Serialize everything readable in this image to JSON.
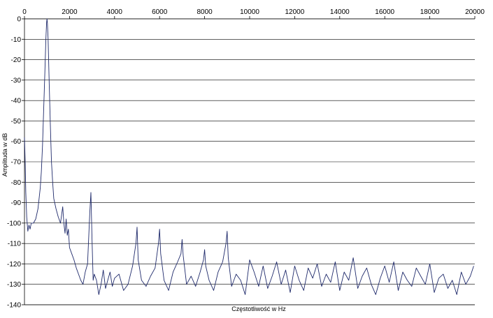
{
  "chart_data": {
    "type": "line",
    "title": "",
    "xlabel": "Częstotliwość w Hz",
    "ylabel": "Amplituda w dB",
    "xlim": [
      0,
      20000
    ],
    "ylim": [
      -140,
      0
    ],
    "x_ticks": [
      "0",
      "2000",
      "4000",
      "6000",
      "8000",
      "10000",
      "12000",
      "14000",
      "16000",
      "18000",
      "20000"
    ],
    "y_ticks": [
      "0",
      "-10",
      "-20",
      "-30",
      "-40",
      "-50",
      "-60",
      "-70",
      "-80",
      "-90",
      "-100",
      "-110",
      "-120",
      "-130",
      "-140"
    ],
    "x_axis_position": "top",
    "grid": {
      "horizontal": true,
      "vertical": false
    },
    "legend": "none",
    "line_color": "#1f2a6b",
    "series": [
      {
        "x": [
          0,
          30,
          60,
          100,
          150,
          200,
          250,
          300,
          400,
          500,
          600,
          700,
          750,
          800,
          850,
          900,
          950,
          980,
          1000,
          1020,
          1050,
          1100,
          1150,
          1200,
          1250,
          1300,
          1400,
          1500,
          1600,
          1700,
          1750,
          1800,
          1850,
          1900,
          1950,
          2000,
          2100,
          2200,
          2300,
          2400,
          2500,
          2600,
          2700,
          2800,
          2900,
          2950,
          3000,
          3050,
          3100,
          3200,
          3300,
          3400,
          3500,
          3600,
          3700,
          3800,
          3900,
          4000,
          4200,
          4400,
          4600,
          4800,
          4950,
          5000,
          5050,
          5200,
          5400,
          5600,
          5800,
          5950,
          6000,
          6050,
          6200,
          6400,
          6600,
          6800,
          6950,
          7000,
          7050,
          7200,
          7400,
          7600,
          7800,
          7950,
          8000,
          8050,
          8200,
          8400,
          8600,
          8800,
          8950,
          9000,
          9050,
          9200,
          9400,
          9600,
          9800,
          10000,
          10200,
          10400,
          10600,
          10800,
          11000,
          11200,
          11400,
          11600,
          11800,
          12000,
          12200,
          12400,
          12600,
          12800,
          13000,
          13200,
          13400,
          13600,
          13800,
          14000,
          14200,
          14400,
          14600,
          14800,
          15000,
          15200,
          15400,
          15600,
          15800,
          16000,
          16200,
          16400,
          16600,
          16800,
          17000,
          17200,
          17400,
          17600,
          17800,
          18000,
          18200,
          18400,
          18600,
          18800,
          19000,
          19200,
          19400,
          19600,
          19800,
          19950
        ],
        "y": [
          -58,
          -70,
          -85,
          -97,
          -104,
          -101,
          -103,
          -100,
          -100,
          -98,
          -93,
          -83,
          -75,
          -62,
          -45,
          -28,
          -10,
          -2,
          0,
          -2,
          -10,
          -32,
          -52,
          -70,
          -80,
          -88,
          -93,
          -97,
          -100,
          -92,
          -100,
          -105,
          -98,
          -106,
          -103,
          -112,
          -115,
          -118,
          -122,
          -125,
          -128,
          -130,
          -124,
          -120,
          -95,
          -85,
          -108,
          -128,
          -125,
          -128,
          -135,
          -130,
          -123,
          -132,
          -128,
          -124,
          -131,
          -127,
          -125,
          -133,
          -130,
          -121,
          -110,
          -102,
          -118,
          -128,
          -131,
          -126,
          -122,
          -110,
          -103,
          -115,
          -128,
          -133,
          -124,
          -119,
          -115,
          -108,
          -116,
          -130,
          -126,
          -131,
          -124,
          -118,
          -113,
          -121,
          -128,
          -133,
          -124,
          -119,
          -110,
          -104,
          -117,
          -131,
          -125,
          -128,
          -135,
          -118,
          -124,
          -131,
          -121,
          -132,
          -126,
          -119,
          -130,
          -123,
          -134,
          -121,
          -128,
          -133,
          -122,
          -127,
          -120,
          -131,
          -125,
          -129,
          -119,
          -133,
          -124,
          -128,
          -117,
          -132,
          -126,
          -122,
          -130,
          -135,
          -127,
          -121,
          -129,
          -119,
          -133,
          -124,
          -128,
          -131,
          -122,
          -126,
          -130,
          -120,
          -134,
          -127,
          -125,
          -132,
          -128,
          -135,
          -124,
          -130,
          -126,
          -121
        ]
      }
    ]
  }
}
